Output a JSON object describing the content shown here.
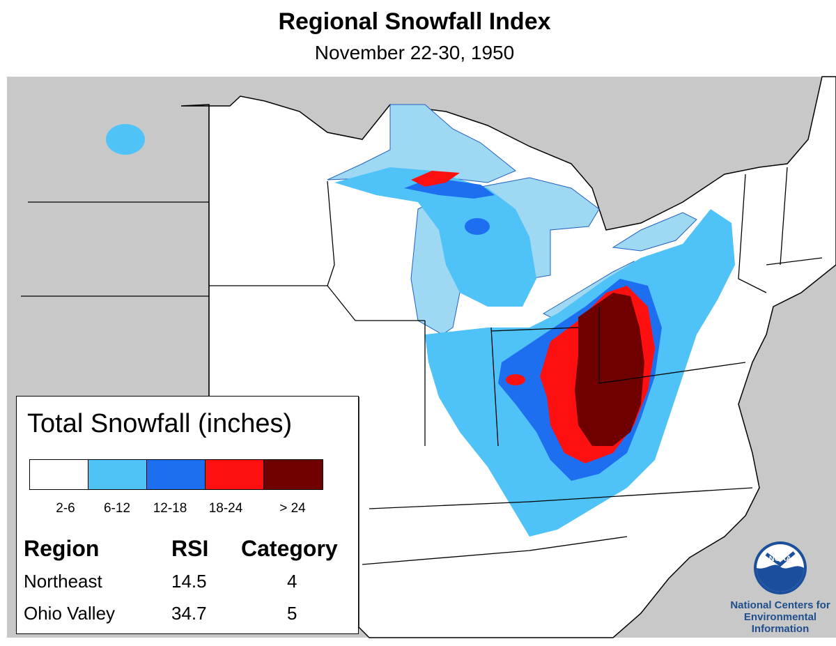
{
  "title": "Regional Snowfall Index",
  "subtitle": "November 22-30, 1950",
  "colors": {
    "outside": "#c8c8c8",
    "land": "#ffffff",
    "lake": "#9fd8f2",
    "class_2_6": "#ffffff",
    "class_6_12": "#4fc3f7",
    "class_12_18": "#1e6ff0",
    "class_18_24": "#ff1010",
    "class_gt_24": "#700000",
    "border": "#000000"
  },
  "legend": {
    "title": "Total Snowfall (inches)",
    "classes": [
      {
        "label": "2-6",
        "color": "#ffffff"
      },
      {
        "label": "6-12",
        "color": "#4fc3f7"
      },
      {
        "label": "12-18",
        "color": "#1e6ff0"
      },
      {
        "label": "18-24",
        "color": "#ff1010"
      },
      {
        "label": "> 24",
        "color": "#700000"
      }
    ]
  },
  "rsi_table": {
    "headers": {
      "region": "Region",
      "rsi": "RSI",
      "category": "Category"
    },
    "rows": [
      {
        "region": "Northeast",
        "rsi": "14.5",
        "category": "4"
      },
      {
        "region": "Ohio Valley",
        "rsi": "34.7",
        "category": "5"
      }
    ]
  },
  "logo": {
    "badge_text": "NOAA",
    "org_line1": "National Centers for",
    "org_line2": "Environmental",
    "org_line3": "Information"
  }
}
